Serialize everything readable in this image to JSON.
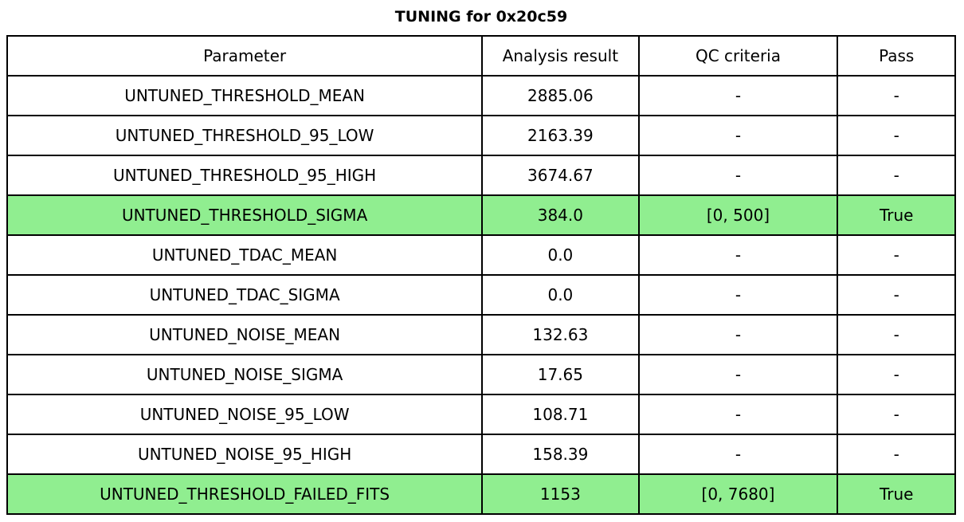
{
  "title": "TUNING for 0x20c59",
  "colors": {
    "background": "#ffffff",
    "border": "#000000",
    "text": "#000000",
    "highlight_row": "#90EE90"
  },
  "chart_data": {
    "type": "table",
    "title": "TUNING for 0x20c59",
    "columns": [
      "Parameter",
      "Analysis result",
      "QC criteria",
      "Pass"
    ],
    "rows": [
      {
        "parameter": "UNTUNED_THRESHOLD_MEAN",
        "analysis_result": "2885.06",
        "qc_criteria": "-",
        "pass": "-",
        "highlighted": false
      },
      {
        "parameter": "UNTUNED_THRESHOLD_95_LOW",
        "analysis_result": "2163.39",
        "qc_criteria": "-",
        "pass": "-",
        "highlighted": false
      },
      {
        "parameter": "UNTUNED_THRESHOLD_95_HIGH",
        "analysis_result": "3674.67",
        "qc_criteria": "-",
        "pass": "-",
        "highlighted": false
      },
      {
        "parameter": "UNTUNED_THRESHOLD_SIGMA",
        "analysis_result": "384.0",
        "qc_criteria": "[0, 500]",
        "pass": "True",
        "highlighted": true
      },
      {
        "parameter": "UNTUNED_TDAC_MEAN",
        "analysis_result": "0.0",
        "qc_criteria": "-",
        "pass": "-",
        "highlighted": false
      },
      {
        "parameter": "UNTUNED_TDAC_SIGMA",
        "analysis_result": "0.0",
        "qc_criteria": "-",
        "pass": "-",
        "highlighted": false
      },
      {
        "parameter": "UNTUNED_NOISE_MEAN",
        "analysis_result": "132.63",
        "qc_criteria": "-",
        "pass": "-",
        "highlighted": false
      },
      {
        "parameter": "UNTUNED_NOISE_SIGMA",
        "analysis_result": "17.65",
        "qc_criteria": "-",
        "pass": "-",
        "highlighted": false
      },
      {
        "parameter": "UNTUNED_NOISE_95_LOW",
        "analysis_result": "108.71",
        "qc_criteria": "-",
        "pass": "-",
        "highlighted": false
      },
      {
        "parameter": "UNTUNED_NOISE_95_HIGH",
        "analysis_result": "158.39",
        "qc_criteria": "-",
        "pass": "-",
        "highlighted": false
      },
      {
        "parameter": "UNTUNED_THRESHOLD_FAILED_FITS",
        "analysis_result": "1153",
        "qc_criteria": "[0, 7680]",
        "pass": "True",
        "highlighted": true
      }
    ],
    "layout": {
      "legend": "none",
      "grid": "full-cell-borders",
      "highlight_color": "#90EE90",
      "column_widths_pct": [
        50.1,
        16.5,
        21.0,
        12.4
      ]
    }
  }
}
